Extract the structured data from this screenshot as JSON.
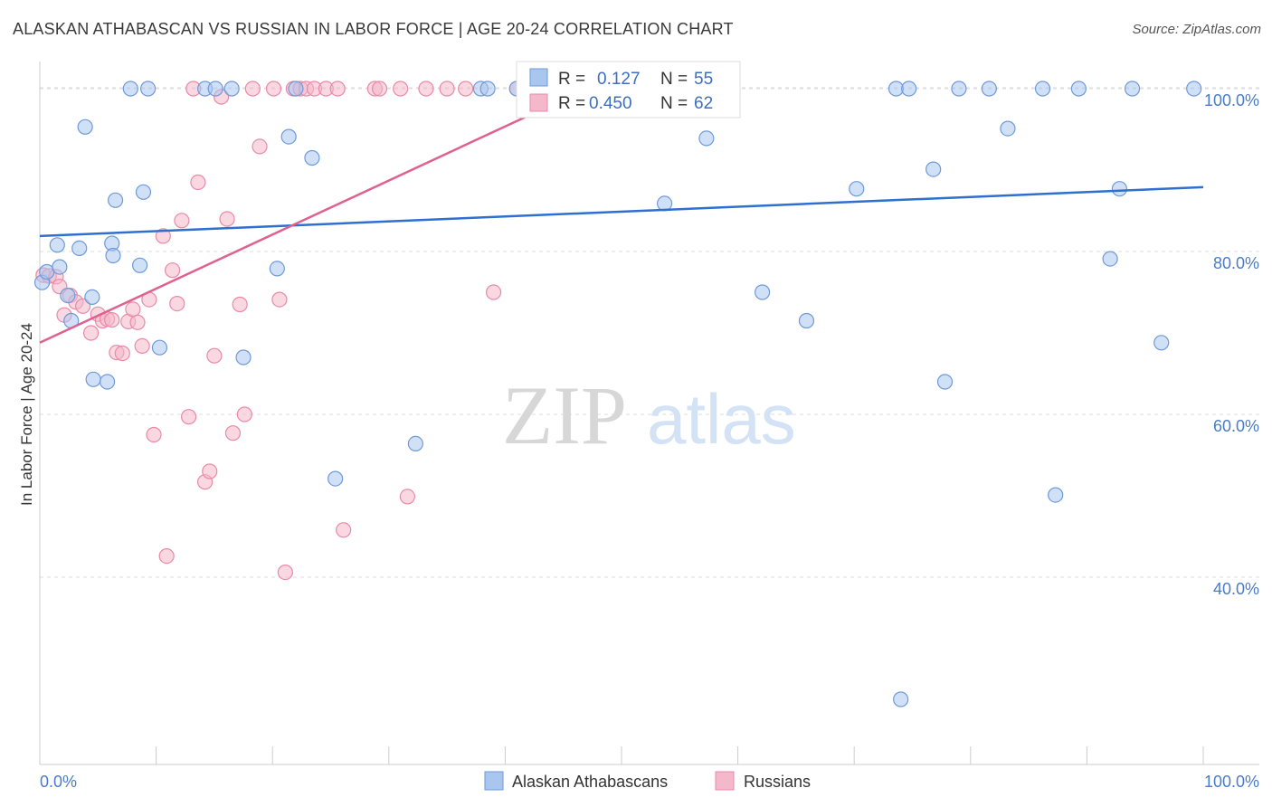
{
  "header": {
    "title": "ALASKAN ATHABASCAN VS RUSSIAN IN LABOR FORCE | AGE 20-24 CORRELATION CHART",
    "source": "Source: ZipAtlas.com"
  },
  "watermark": {
    "zip": "ZIP",
    "atlas": "atlas"
  },
  "colors": {
    "blue_fill": "#a9c6ee",
    "blue_stroke": "#6f9ad8",
    "blue_line": "#2f6fcf",
    "pink_fill": "#f4b8cb",
    "pink_stroke": "#e98aa8",
    "pink_line": "#e0608f",
    "tick_text": "#4a7cc7",
    "grid": "#dddddd"
  },
  "stats_box": {
    "rows": [
      {
        "r_label": "R =",
        "r_value": "0.127",
        "n_label": "N =",
        "n_value": "55"
      },
      {
        "r_label": "R =",
        "r_value": "0.450",
        "n_label": "N =",
        "n_value": "62"
      }
    ]
  },
  "chart_data": {
    "type": "scatter",
    "title": "ALASKAN ATHABASCAN VS RUSSIAN IN LABOR FORCE | AGE 20-24 CORRELATION CHART",
    "xlabel": "",
    "ylabel": "In Labor Force | Age 20-24",
    "xlim": [
      0,
      100
    ],
    "ylim": [
      17,
      102
    ],
    "x_tick_labels": [
      "0.0%",
      "100.0%"
    ],
    "y_ticks": [
      40,
      60,
      80,
      100
    ],
    "y_tick_labels": [
      "40.0%",
      "60.0%",
      "80.0%",
      "100.0%"
    ],
    "grid": true,
    "legend_position": "bottom",
    "series": [
      {
        "name": "Alaskan Athabascans",
        "color": "#a9c6ee",
        "trend": {
          "x": [
            0,
            100
          ],
          "y": [
            81.9,
            87.9
          ]
        },
        "points": [
          [
            0.2,
            76.2
          ],
          [
            0.6,
            77.5
          ],
          [
            1.5,
            80.8
          ],
          [
            1.7,
            78.1
          ],
          [
            2.4,
            74.6
          ],
          [
            2.7,
            71.5
          ],
          [
            3.4,
            80.4
          ],
          [
            3.9,
            95.3
          ],
          [
            4.5,
            74.4
          ],
          [
            4.6,
            64.3
          ],
          [
            5.8,
            64.0
          ],
          [
            6.2,
            81.0
          ],
          [
            6.3,
            79.5
          ],
          [
            6.5,
            86.3
          ],
          [
            7.8,
            100.0
          ],
          [
            8.6,
            78.3
          ],
          [
            8.9,
            87.3
          ],
          [
            9.3,
            100.0
          ],
          [
            10.3,
            68.2
          ],
          [
            14.2,
            100.0
          ],
          [
            15.1,
            100.0
          ],
          [
            16.5,
            100.0
          ],
          [
            17.5,
            67.0
          ],
          [
            20.4,
            77.9
          ],
          [
            21.4,
            94.1
          ],
          [
            22.0,
            100.0
          ],
          [
            23.4,
            91.5
          ],
          [
            25.4,
            52.1
          ],
          [
            32.3,
            56.4
          ],
          [
            37.9,
            100.0
          ],
          [
            38.5,
            100.0
          ],
          [
            41.0,
            100.0
          ],
          [
            48.2,
            100.0
          ],
          [
            53.5,
            100.0
          ],
          [
            53.7,
            85.9
          ],
          [
            57.3,
            93.9
          ],
          [
            62.1,
            75.0
          ],
          [
            65.9,
            71.5
          ],
          [
            70.2,
            87.7
          ],
          [
            73.6,
            100.0
          ],
          [
            74.0,
            25.0
          ],
          [
            74.7,
            100.0
          ],
          [
            76.8,
            90.1
          ],
          [
            77.8,
            64.0
          ],
          [
            79.0,
            100.0
          ],
          [
            81.6,
            100.0
          ],
          [
            83.2,
            95.1
          ],
          [
            86.2,
            100.0
          ],
          [
            87.3,
            50.1
          ],
          [
            89.3,
            100.0
          ],
          [
            92.0,
            79.1
          ],
          [
            92.8,
            87.7
          ],
          [
            93.9,
            100.0
          ],
          [
            96.4,
            68.8
          ],
          [
            99.2,
            100.0
          ]
        ]
      },
      {
        "name": "Russians",
        "color": "#f4b8cb",
        "trend": {
          "x": [
            0,
            50
          ],
          "y": [
            68.8,
            102.0
          ]
        },
        "points": [
          [
            0.3,
            77.1
          ],
          [
            0.8,
            77.0
          ],
          [
            1.4,
            76.9
          ],
          [
            1.7,
            75.7
          ],
          [
            2.1,
            72.2
          ],
          [
            2.6,
            74.6
          ],
          [
            3.1,
            73.8
          ],
          [
            3.7,
            73.3
          ],
          [
            4.4,
            70.0
          ],
          [
            5.0,
            72.3
          ],
          [
            5.4,
            71.5
          ],
          [
            5.8,
            71.7
          ],
          [
            6.2,
            71.6
          ],
          [
            6.6,
            67.6
          ],
          [
            7.1,
            67.5
          ],
          [
            7.6,
            71.4
          ],
          [
            8.0,
            72.9
          ],
          [
            8.4,
            71.3
          ],
          [
            8.8,
            68.4
          ],
          [
            9.4,
            74.1
          ],
          [
            9.8,
            57.5
          ],
          [
            10.6,
            81.9
          ],
          [
            10.9,
            42.6
          ],
          [
            11.4,
            77.7
          ],
          [
            11.8,
            73.6
          ],
          [
            12.2,
            83.8
          ],
          [
            12.8,
            59.7
          ],
          [
            13.2,
            100.0
          ],
          [
            13.6,
            88.5
          ],
          [
            14.2,
            51.7
          ],
          [
            14.6,
            53.0
          ],
          [
            15.0,
            67.2
          ],
          [
            15.6,
            99.0
          ],
          [
            16.1,
            84.0
          ],
          [
            16.6,
            57.7
          ],
          [
            17.2,
            73.5
          ],
          [
            17.6,
            60.0
          ],
          [
            18.3,
            100.0
          ],
          [
            18.9,
            92.9
          ],
          [
            20.1,
            100.0
          ],
          [
            20.6,
            74.1
          ],
          [
            21.1,
            40.6
          ],
          [
            21.8,
            100.0
          ],
          [
            22.4,
            100.0
          ],
          [
            22.9,
            100.0
          ],
          [
            23.6,
            100.0
          ],
          [
            24.6,
            100.0
          ],
          [
            25.6,
            100.0
          ],
          [
            26.1,
            45.8
          ],
          [
            28.8,
            100.0
          ],
          [
            29.2,
            100.0
          ],
          [
            31.0,
            100.0
          ],
          [
            31.6,
            49.9
          ],
          [
            33.2,
            100.0
          ],
          [
            35.0,
            100.0
          ],
          [
            36.6,
            100.0
          ],
          [
            39.0,
            75.0
          ],
          [
            41.0,
            100.0
          ],
          [
            44.9,
            100.0
          ],
          [
            49.6,
            100.0
          ],
          [
            54.4,
            100.0
          ],
          [
            59.1,
            100.0
          ]
        ]
      }
    ]
  }
}
